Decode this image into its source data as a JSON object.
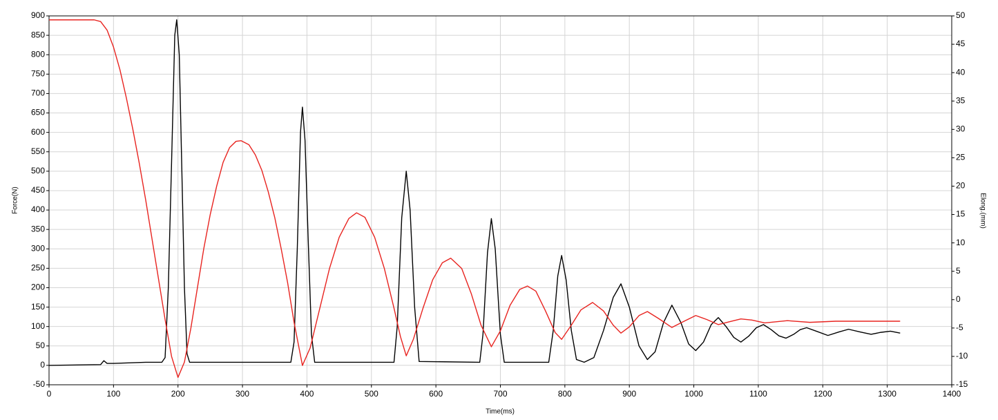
{
  "chart_data": {
    "type": "line",
    "xlabel": "Time(ms)",
    "ylabel": "Force(N)",
    "y2label": "Elong.(mm)",
    "xlim": [
      0,
      1400
    ],
    "xticks": [
      0,
      100,
      200,
      300,
      400,
      500,
      600,
      700,
      800,
      900,
      1000,
      1100,
      1200,
      1300,
      1400
    ],
    "ylim": [
      -50,
      900
    ],
    "yticks": [
      -50,
      0,
      50,
      100,
      150,
      200,
      250,
      300,
      350,
      400,
      450,
      500,
      550,
      600,
      650,
      700,
      750,
      800,
      850,
      900
    ],
    "y2lim": [
      -15,
      50
    ],
    "y2ticks": [
      -15,
      -10,
      -5,
      0,
      5,
      10,
      15,
      20,
      25,
      30,
      35,
      40,
      45,
      50
    ],
    "grid": true,
    "series": [
      {
        "color": "#000000",
        "x": [
          0,
          80,
          85,
          90,
          100,
          150,
          175,
          180,
          185,
          190,
          195,
          198,
          202,
          206,
          210,
          214,
          218,
          300,
          375,
          380,
          385,
          390,
          393,
          397,
          402,
          407,
          412,
          535,
          540,
          547,
          554,
          560,
          567,
          574,
          668,
          673,
          680,
          686,
          692,
          700,
          706,
          775,
          782,
          789,
          795,
          802,
          810,
          818,
          830,
          845,
          860,
          875,
          887,
          900,
          915,
          928,
          940,
          953,
          966,
          980,
          992,
          1003,
          1015,
          1027,
          1038,
          1050,
          1062,
          1073,
          1085,
          1097,
          1108,
          1120,
          1132,
          1143,
          1155,
          1165,
          1175,
          1190,
          1208,
          1225,
          1240,
          1258,
          1275,
          1290,
          1305,
          1320
        ],
        "values": [
          0,
          2,
          12,
          5,
          5,
          8,
          8,
          20,
          200,
          520,
          850,
          890,
          800,
          500,
          200,
          30,
          8,
          8,
          8,
          60,
          300,
          600,
          665,
          580,
          320,
          80,
          8,
          8,
          100,
          380,
          500,
          400,
          150,
          10,
          8,
          80,
          290,
          378,
          300,
          80,
          8,
          8,
          90,
          230,
          283,
          220,
          90,
          15,
          8,
          20,
          90,
          175,
          210,
          150,
          50,
          15,
          35,
          110,
          155,
          110,
          55,
          38,
          60,
          105,
          123,
          100,
          72,
          60,
          75,
          97,
          105,
          92,
          76,
          70,
          80,
          92,
          97,
          88,
          77,
          86,
          93,
          86,
          80,
          85,
          88,
          83
        ]
      },
      {
        "color": "#e8231f",
        "axis": "y2",
        "x": [
          0,
          70,
          80,
          90,
          100,
          110,
          120,
          130,
          140,
          150,
          160,
          170,
          180,
          190,
          200,
          210,
          220,
          230,
          240,
          250,
          260,
          270,
          280,
          290,
          298,
          310,
          320,
          330,
          340,
          350,
          360,
          370,
          380,
          393,
          405,
          420,
          435,
          450,
          465,
          477,
          490,
          505,
          520,
          535,
          545,
          554,
          565,
          580,
          595,
          610,
          623,
          640,
          655,
          670,
          686,
          700,
          715,
          730,
          742,
          755,
          770,
          785,
          795,
          810,
          825,
          843,
          860,
          875,
          887,
          900,
          915,
          928,
          945,
          966,
          985,
          1003,
          1020,
          1038,
          1055,
          1073,
          1090,
          1110,
          1145,
          1180,
          1220,
          1260,
          1320
        ],
        "values": [
          49.3,
          49.3,
          49.0,
          47.5,
          44.5,
          40.5,
          35.5,
          30,
          24,
          17.5,
          10.5,
          3.5,
          -3.5,
          -10,
          -13.7,
          -11,
          -5,
          2,
          9,
          15,
          20,
          24.2,
          26.8,
          27.9,
          28.0,
          27.3,
          25.5,
          22.8,
          19,
          14.5,
          9,
          3,
          -4,
          -11.6,
          -8.5,
          -1.5,
          5.5,
          11,
          14.3,
          15.3,
          14.5,
          11,
          5.5,
          -1.5,
          -6.5,
          -9.9,
          -7,
          -1.5,
          3.5,
          6.5,
          7.3,
          5.5,
          1,
          -4.5,
          -8.3,
          -5.5,
          -1,
          1.8,
          2.4,
          1.5,
          -2,
          -5.8,
          -7.0,
          -4.5,
          -1.8,
          -0.5,
          -2,
          -4.5,
          -5.9,
          -4.8,
          -2.8,
          -2.1,
          -3.3,
          -4.9,
          -3.8,
          -2.8,
          -3.5,
          -4.4,
          -3.9,
          -3.4,
          -3.6,
          -4.1,
          -3.7,
          -4.0,
          -3.8,
          -3.8,
          -3.8
        ]
      }
    ]
  }
}
